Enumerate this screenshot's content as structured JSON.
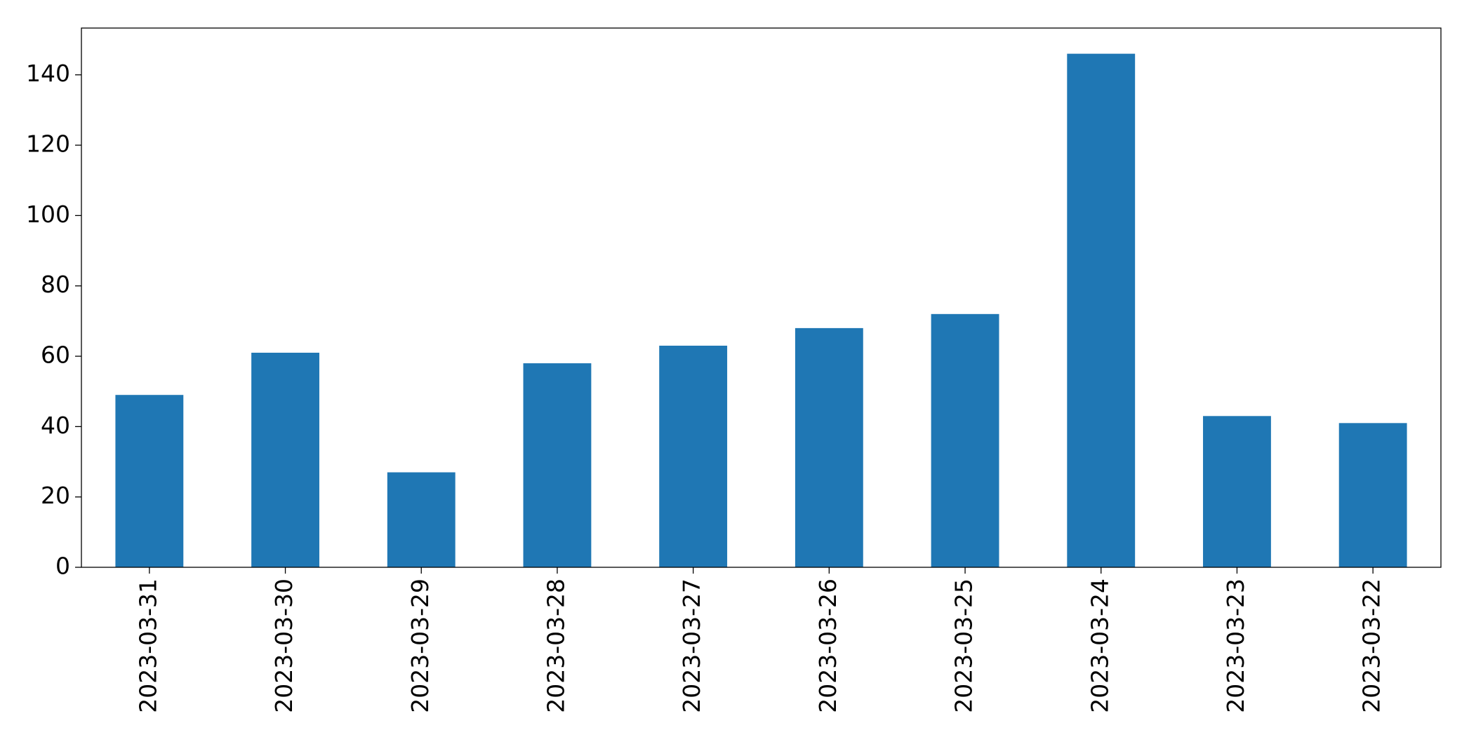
{
  "chart_data": {
    "type": "bar",
    "categories": [
      "2023-03-31",
      "2023-03-30",
      "2023-03-29",
      "2023-03-28",
      "2023-03-27",
      "2023-03-26",
      "2023-03-25",
      "2023-03-24",
      "2023-03-23",
      "2023-03-22"
    ],
    "values": [
      49,
      61,
      27,
      58,
      63,
      68,
      72,
      146,
      43,
      41
    ],
    "color": "#1f77b4",
    "ylim": [
      0,
      153.3
    ],
    "yticks": [
      0,
      20,
      40,
      60,
      80,
      100,
      120,
      140
    ],
    "grid": false
  }
}
